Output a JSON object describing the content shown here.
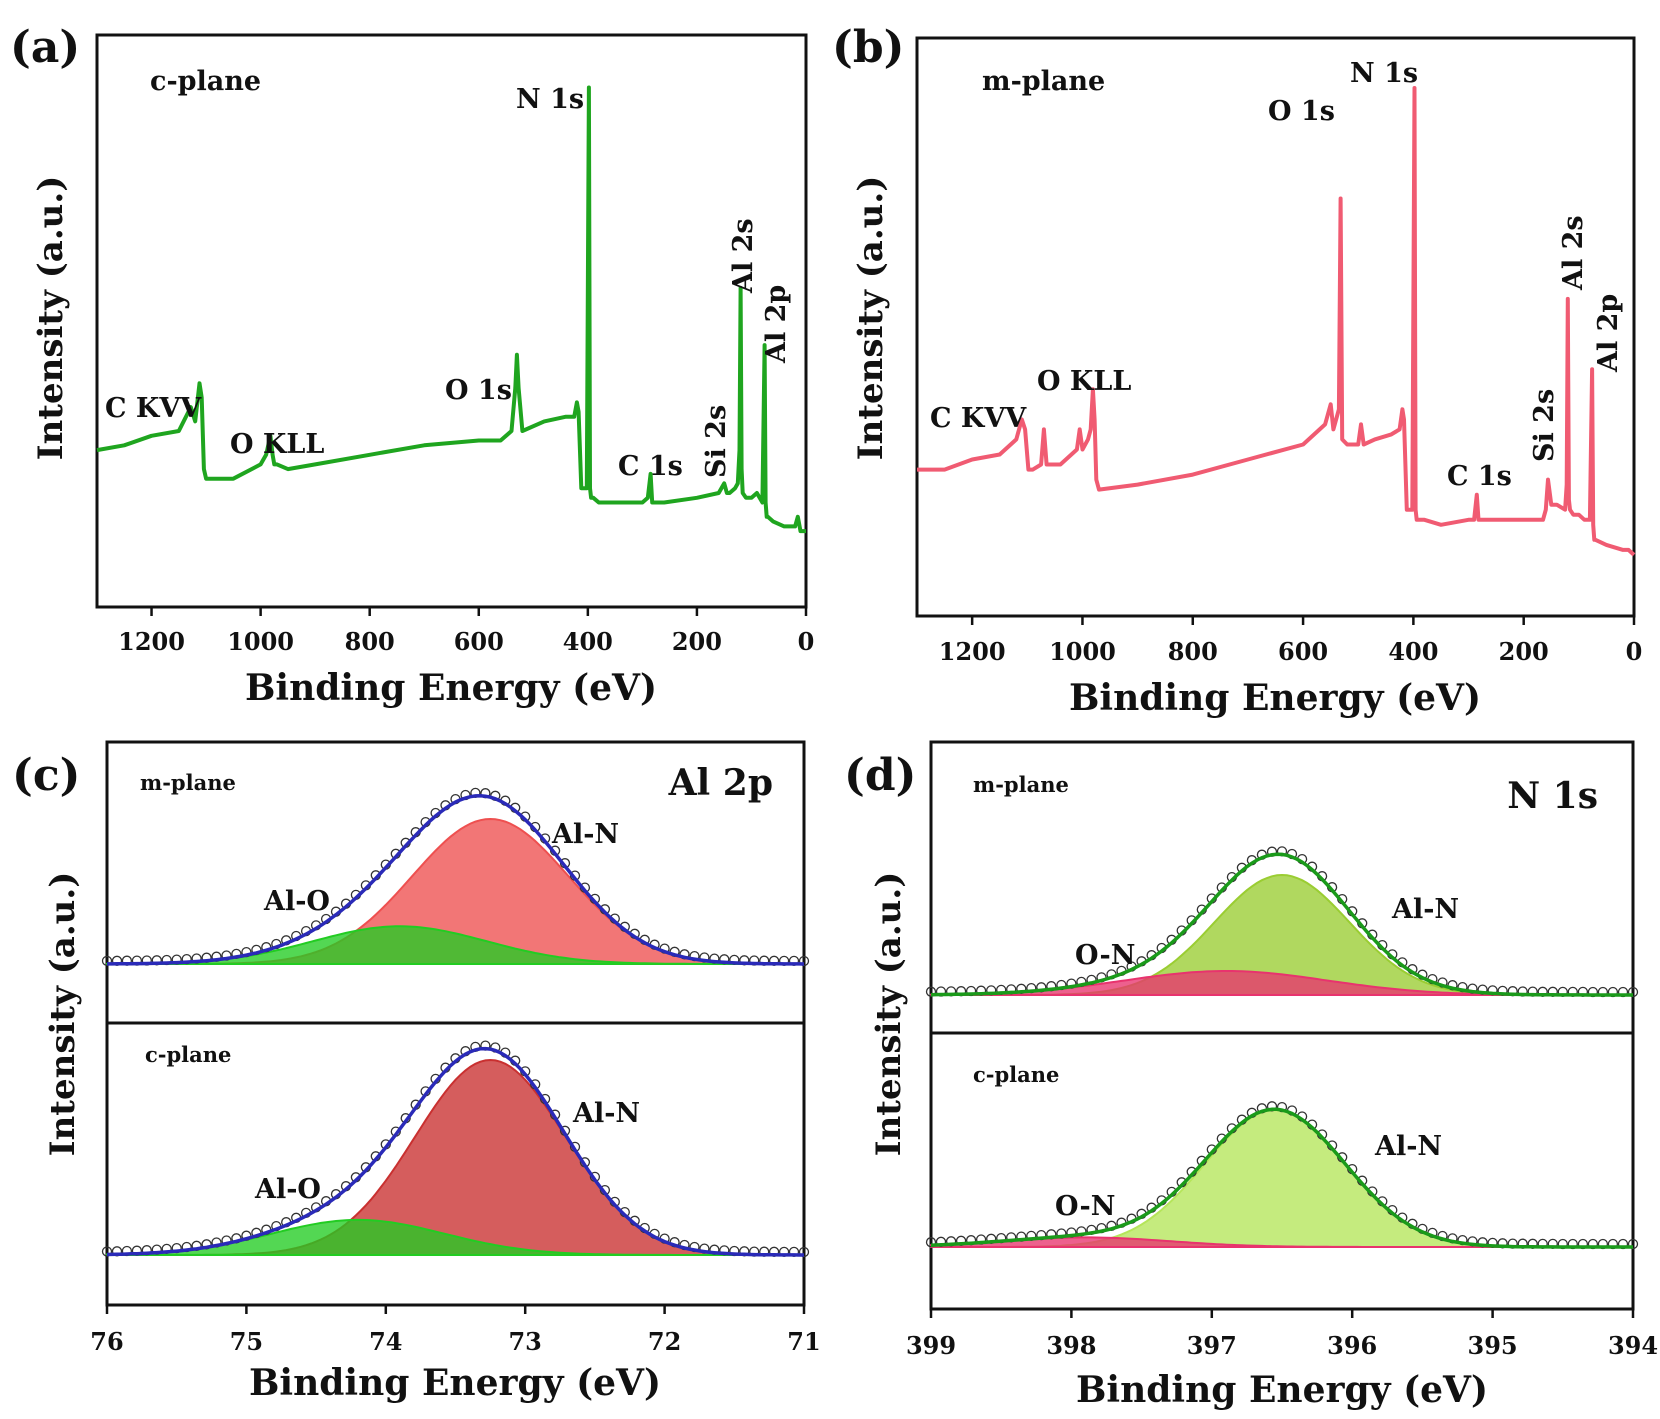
{
  "chart_data": [
    {
      "panel": "(a)",
      "type": "line",
      "sample": "c-plane",
      "xlabel": "Binding Energy (eV)",
      "ylabel": "Intensity (a.u.)",
      "xlim": [
        1300,
        0
      ],
      "xticks": [
        "1200",
        "1000",
        "800",
        "600",
        "400",
        "200",
        "0"
      ],
      "tick_values": [
        1200,
        1000,
        800,
        600,
        400,
        200,
        0
      ],
      "color": "#1fa51f",
      "ylim": [
        0,
        100
      ],
      "series": [
        {
          "name": "c-plane survey",
          "x": [
            1300,
            1250,
            1200,
            1150,
            1128,
            1120,
            1112,
            1108,
            1104,
            1100,
            1080,
            1050,
            1000,
            990,
            982,
            978,
            975,
            970,
            950,
            900,
            800,
            700,
            600,
            560,
            540,
            533,
            530,
            527,
            520,
            480,
            440,
            425,
            420,
            417,
            412,
            402,
            398,
            396,
            394,
            390,
            380,
            350,
            300,
            290,
            285,
            282,
            278,
            260,
            200,
            160,
            150,
            145,
            140,
            130,
            125,
            122,
            120,
            118,
            116,
            110,
            100,
            90,
            80,
            76,
            74,
            72,
            70,
            60,
            40,
            20,
            15,
            10,
            0
          ],
          "y": [
            22,
            23,
            25,
            26,
            31,
            28,
            36,
            33,
            18,
            16,
            16,
            16,
            19,
            21,
            25,
            21,
            19,
            19,
            18,
            19,
            21,
            23,
            24,
            24,
            26,
            35,
            42,
            35,
            26,
            28,
            29,
            29,
            32,
            30,
            14,
            14,
            98,
            14,
            12,
            12,
            11,
            11,
            11,
            12,
            17,
            11,
            11,
            11,
            12,
            13,
            15,
            13,
            13,
            14,
            15,
            22,
            56,
            18,
            13,
            12,
            12,
            13,
            11,
            44,
            11,
            8,
            8,
            7,
            6,
            6,
            8,
            5,
            5
          ]
        }
      ],
      "annotations": [
        "C KVV",
        "O KLL",
        "O 1s",
        "N 1s",
        "C 1s",
        "Si 2s",
        "Al 2s",
        "Al 2p"
      ]
    },
    {
      "panel": "(b)",
      "type": "line",
      "sample": "m-plane",
      "xlabel": "Binding Energy (eV)",
      "ylabel": "Intensity (a.u.)",
      "xlim": [
        1300,
        0
      ],
      "xticks": [
        "1200",
        "1000",
        "800",
        "600",
        "400",
        "200",
        "0"
      ],
      "tick_values": [
        1200,
        1000,
        800,
        600,
        400,
        200,
        0
      ],
      "color": "#f05b72",
      "ylim": [
        0,
        100
      ],
      "series": [
        {
          "name": "m-plane survey",
          "x": [
            1300,
            1250,
            1200,
            1150,
            1120,
            1110,
            1104,
            1098,
            1090,
            1075,
            1070,
            1065,
            1040,
            1010,
            1005,
            1000,
            990,
            985,
            981,
            978,
            975,
            970,
            900,
            800,
            700,
            600,
            560,
            550,
            545,
            535,
            532,
            529,
            520,
            500,
            495,
            490,
            470,
            440,
            425,
            420,
            417,
            412,
            402,
            398,
            396,
            394,
            390,
            380,
            350,
            300,
            290,
            285,
            282,
            278,
            250,
            200,
            165,
            160,
            156,
            150,
            140,
            125,
            122,
            120,
            118,
            116,
            110,
            100,
            90,
            80,
            76,
            74,
            72,
            70,
            50,
            20,
            10,
            0
          ],
          "y": [
            22,
            22,
            24,
            25,
            28,
            32,
            30,
            22,
            22,
            23,
            30,
            23,
            23,
            26,
            30,
            26,
            28,
            30,
            38,
            32,
            20,
            18,
            19,
            21,
            24,
            27,
            31,
            35,
            30,
            34,
            76,
            28,
            27,
            27,
            31,
            27,
            28,
            29,
            30,
            34,
            32,
            14,
            14,
            98,
            14,
            12,
            12,
            12,
            11,
            12,
            12,
            17,
            12,
            12,
            12,
            12,
            12,
            14,
            20,
            15,
            15,
            14,
            19,
            56,
            16,
            14,
            13,
            13,
            12,
            12,
            42,
            11,
            8,
            8,
            7,
            6,
            6,
            5
          ]
        }
      ],
      "annotations": [
        "C KVV",
        "O KLL",
        "O 1s",
        "N 1s",
        "C 1s",
        "Si 2s",
        "Al 2s",
        "Al 2p"
      ]
    },
    {
      "panel": "(c)",
      "type": "area",
      "region": "Al 2p",
      "xlabel": "Binding Energy (eV)",
      "ylabel": "Intensity (a.u.)",
      "xlim": [
        76,
        71
      ],
      "xticks": [
        "76",
        "75",
        "74",
        "73",
        "72",
        "71"
      ],
      "tick_values": [
        76,
        75,
        74,
        73,
        72,
        71
      ],
      "subplots": [
        {
          "sample": "m-plane",
          "components": [
            {
              "name": "Al-N",
              "center": 73.25,
              "height": 100,
              "width": 0.56,
              "color": "#ee5050"
            },
            {
              "name": "Al-O",
              "center": 73.9,
              "height": 26,
              "width": 0.62,
              "color": "#22cc22"
            }
          ],
          "envelope_color": "#2a2ab8"
        },
        {
          "sample": "c-plane",
          "components": [
            {
              "name": "Al-N",
              "center": 73.25,
              "height": 100,
              "width": 0.54,
              "color": "#c93030"
            },
            {
              "name": "Al-O",
              "center": 74.2,
              "height": 18,
              "width": 0.62,
              "color": "#22cc22"
            }
          ],
          "envelope_color": "#2a2ab8"
        }
      ]
    },
    {
      "panel": "(d)",
      "type": "area",
      "region": "N 1s",
      "xlabel": "Binding Energy (eV)",
      "ylabel": "Intensity (a.u.)",
      "xlim": [
        399,
        394
      ],
      "xticks": [
        "399",
        "398",
        "397",
        "396",
        "395",
        "394"
      ],
      "tick_values": [
        399,
        398,
        397,
        396,
        395,
        394
      ],
      "subplots": [
        {
          "sample": "m-plane",
          "components": [
            {
              "name": "Al-N",
              "center": 396.5,
              "height": 100,
              "width": 0.48,
              "color": "#9acd32"
            },
            {
              "name": "O-N",
              "center": 396.9,
              "height": 20,
              "width": 0.72,
              "color": "#e8336e"
            }
          ],
          "envelope_color": "#1a9a1a"
        },
        {
          "sample": "c-plane",
          "components": [
            {
              "name": "Al-N",
              "center": 396.55,
              "height": 100,
              "width": 0.5,
              "color": "#b5e55a"
            },
            {
              "name": "O-N",
              "center": 397.9,
              "height": 7,
              "width": 0.6,
              "color": "#e8336e"
            }
          ],
          "envelope_color": "#1a9a1a"
        }
      ]
    }
  ]
}
